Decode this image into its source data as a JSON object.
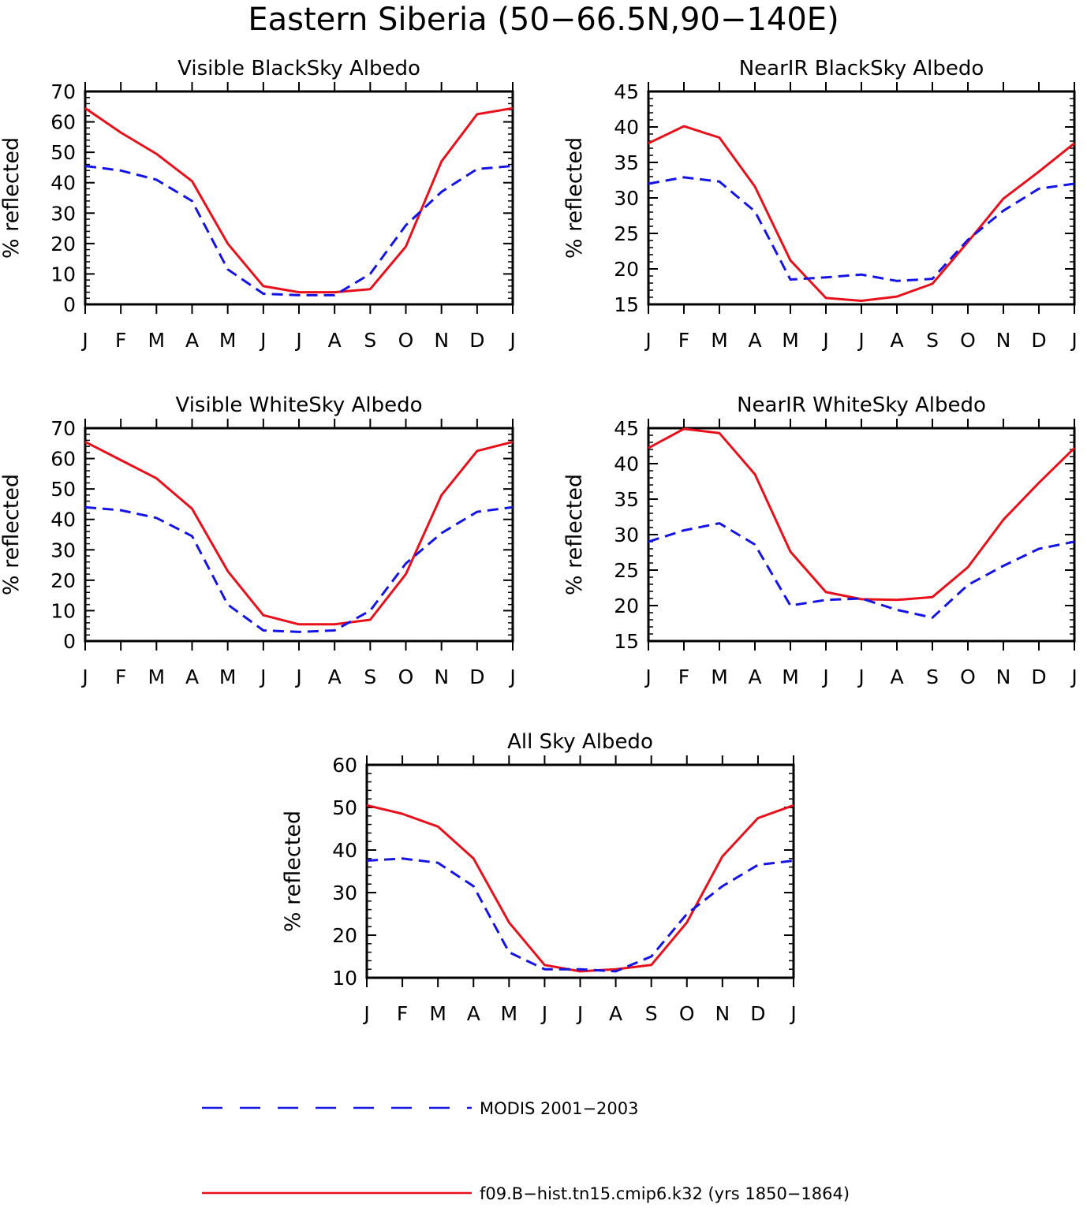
{
  "figure": {
    "title": "Eastern Siberia (50−66.5N,90−140E)"
  },
  "colors": {
    "model": "#e8101a",
    "obs": "#1414e6",
    "axis": "#000000"
  },
  "legend": {
    "placement": "bottom",
    "entries": [
      {
        "key": "obs",
        "label": "MODIS 2001−2003",
        "style": "dashed",
        "color": "#1414e6"
      },
      {
        "key": "model",
        "label": "f09.B−hist.tn15.cmip6.k32 (yrs 1850−1864)",
        "style": "solid",
        "color": "#e8101a"
      }
    ]
  },
  "chart_data": [
    {
      "type": "line",
      "title": "Visible BlackSky Albedo",
      "ylabel": "% reflected",
      "xlabel": "",
      "categories": [
        "J",
        "F",
        "M",
        "A",
        "M",
        "J",
        "J",
        "A",
        "S",
        "O",
        "N",
        "D",
        "J"
      ],
      "ylim": [
        0,
        70
      ],
      "yticks": [
        0,
        10,
        20,
        30,
        40,
        50,
        60,
        70
      ],
      "series": [
        {
          "key": "model",
          "values": [
            64.5,
            56.5,
            49.5,
            40.5,
            20,
            6,
            4,
            4,
            5,
            19,
            47,
            62.5,
            64.5
          ]
        },
        {
          "key": "obs",
          "values": [
            45.5,
            44,
            41,
            34,
            11.5,
            3.5,
            3,
            3,
            10,
            26,
            37,
            44.5,
            45.5
          ]
        }
      ]
    },
    {
      "type": "line",
      "title": "NearIR BlackSky Albedo",
      "ylabel": "% reflected",
      "xlabel": "",
      "categories": [
        "J",
        "F",
        "M",
        "A",
        "M",
        "J",
        "J",
        "A",
        "S",
        "O",
        "N",
        "D",
        "J"
      ],
      "ylim": [
        15,
        45
      ],
      "yticks": [
        15,
        20,
        25,
        30,
        35,
        40,
        45
      ],
      "series": [
        {
          "key": "model",
          "values": [
            37.7,
            40.1,
            38.5,
            31.6,
            21.2,
            15.9,
            15.5,
            16.1,
            17.9,
            23.8,
            29.9,
            33.7,
            37.7
          ]
        },
        {
          "key": "obs",
          "values": [
            32,
            32.9,
            32.3,
            28.1,
            18.5,
            18.8,
            19.2,
            18.3,
            18.6,
            24.1,
            28.2,
            31.3,
            32
          ]
        }
      ]
    },
    {
      "type": "line",
      "title": "Visible WhiteSky Albedo",
      "ylabel": "% reflected",
      "xlabel": "",
      "categories": [
        "J",
        "F",
        "M",
        "A",
        "M",
        "J",
        "J",
        "A",
        "S",
        "O",
        "N",
        "D",
        "J"
      ],
      "ylim": [
        0,
        70
      ],
      "yticks": [
        0,
        10,
        20,
        30,
        40,
        50,
        60,
        70
      ],
      "series": [
        {
          "key": "model",
          "values": [
            65.5,
            59.5,
            53.5,
            43.5,
            23,
            8.5,
            5.5,
            5.5,
            7,
            22,
            48,
            62.5,
            65.5
          ]
        },
        {
          "key": "obs",
          "values": [
            44,
            43,
            40.5,
            34.5,
            12,
            3.5,
            3,
            3.5,
            10,
            25.5,
            35.5,
            42.5,
            44
          ]
        }
      ]
    },
    {
      "type": "line",
      "title": "NearIR WhiteSky Albedo",
      "ylabel": "% reflected",
      "xlabel": "",
      "categories": [
        "J",
        "F",
        "M",
        "A",
        "M",
        "J",
        "J",
        "A",
        "S",
        "O",
        "N",
        "D",
        "J"
      ],
      "ylim": [
        15,
        45
      ],
      "yticks": [
        15,
        20,
        25,
        30,
        35,
        40,
        45
      ],
      "series": [
        {
          "key": "model",
          "values": [
            42.2,
            44.9,
            44.3,
            38.5,
            27.6,
            21.9,
            20.9,
            20.8,
            21.2,
            25.4,
            32.1,
            37.3,
            42.2
          ]
        },
        {
          "key": "obs",
          "values": [
            29,
            30.6,
            31.6,
            28.6,
            20,
            20.8,
            21,
            19.4,
            18.3,
            22.9,
            25.6,
            28,
            29
          ]
        }
      ]
    },
    {
      "type": "line",
      "title": "All Sky Albedo",
      "ylabel": "% reflected",
      "xlabel": "",
      "categories": [
        "J",
        "F",
        "M",
        "A",
        "M",
        "J",
        "J",
        "A",
        "S",
        "O",
        "N",
        "D",
        "J"
      ],
      "ylim": [
        10,
        60
      ],
      "yticks": [
        10,
        20,
        30,
        40,
        50,
        60
      ],
      "series": [
        {
          "key": "model",
          "values": [
            50.5,
            48.5,
            45.5,
            38,
            23,
            13,
            11.5,
            12,
            13,
            23,
            38.5,
            47.5,
            50.5
          ]
        },
        {
          "key": "obs",
          "values": [
            37.5,
            38,
            37,
            31.5,
            16,
            12,
            12,
            11.5,
            15,
            25,
            31.5,
            36.5,
            37.5
          ]
        }
      ]
    }
  ]
}
